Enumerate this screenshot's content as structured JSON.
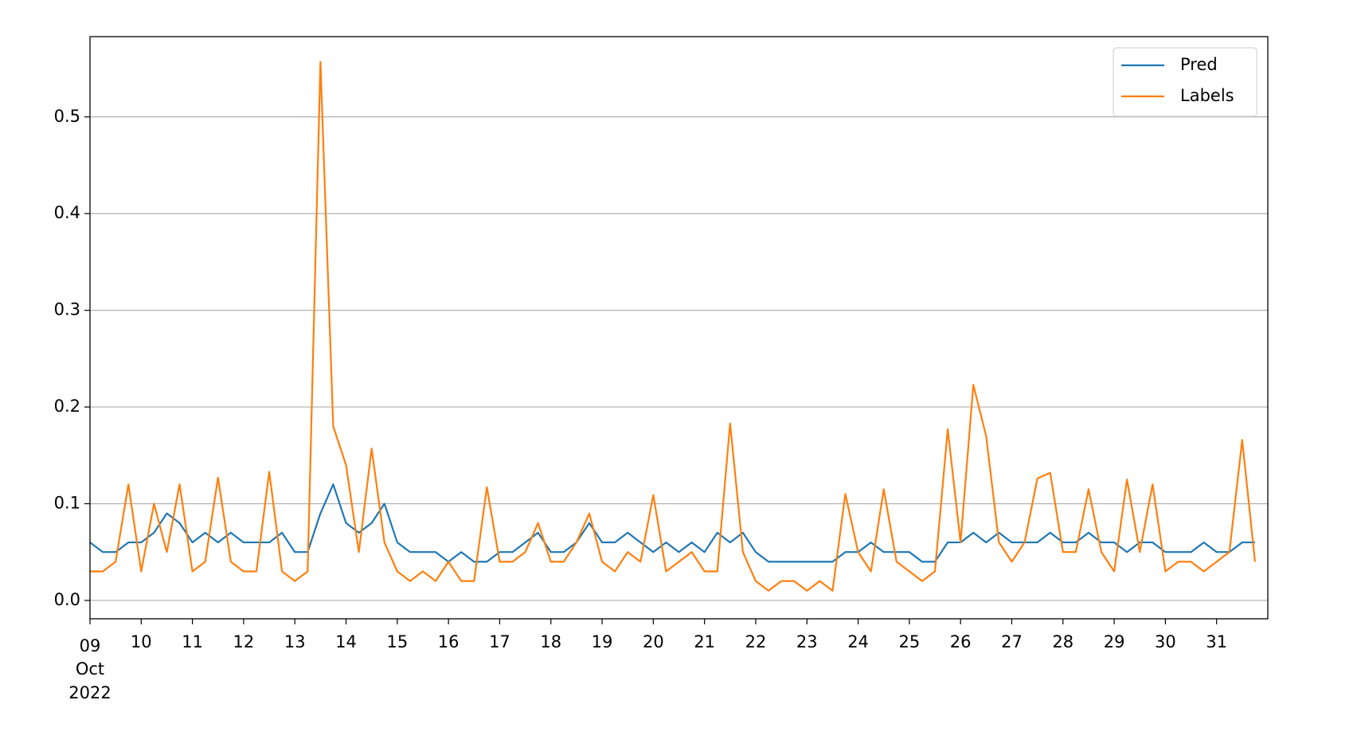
{
  "chart_data": {
    "type": "line",
    "x": [
      9,
      9.25,
      9.5,
      9.75,
      10,
      10.25,
      10.5,
      10.75,
      11,
      11.25,
      11.5,
      11.75,
      12,
      12.25,
      12.5,
      12.75,
      13,
      13.25,
      13.5,
      13.75,
      14,
      14.25,
      14.5,
      14.75,
      15,
      15.25,
      15.5,
      15.75,
      16,
      16.25,
      16.5,
      16.75,
      17,
      17.25,
      17.5,
      17.75,
      18,
      18.25,
      18.5,
      18.75,
      19,
      19.25,
      19.5,
      19.75,
      20,
      20.25,
      20.5,
      20.75,
      21,
      21.25,
      21.5,
      21.75,
      22,
      22.25,
      22.5,
      22.75,
      23,
      23.25,
      23.5,
      23.75,
      24,
      24.25,
      24.5,
      24.75,
      25,
      25.25,
      25.5,
      25.75,
      26,
      26.25,
      26.5,
      26.75,
      27,
      27.25,
      27.5,
      27.75,
      28,
      28.25,
      28.5,
      28.75,
      29,
      29.25,
      29.5,
      29.75,
      30,
      30.25,
      30.5,
      30.75,
      31,
      31.25,
      31.5,
      31.75
    ],
    "series": [
      {
        "name": "Pred",
        "color": "#1f77b4",
        "values": [
          0.06,
          0.05,
          0.05,
          0.06,
          0.06,
          0.07,
          0.09,
          0.08,
          0.06,
          0.07,
          0.06,
          0.07,
          0.06,
          0.06,
          0.06,
          0.07,
          0.05,
          0.05,
          0.09,
          0.12,
          0.08,
          0.07,
          0.08,
          0.1,
          0.06,
          0.05,
          0.05,
          0.05,
          0.04,
          0.05,
          0.04,
          0.04,
          0.05,
          0.05,
          0.06,
          0.07,
          0.05,
          0.05,
          0.06,
          0.08,
          0.06,
          0.06,
          0.07,
          0.06,
          0.05,
          0.06,
          0.05,
          0.06,
          0.05,
          0.07,
          0.06,
          0.07,
          0.05,
          0.04,
          0.04,
          0.04,
          0.04,
          0.04,
          0.04,
          0.05,
          0.05,
          0.06,
          0.05,
          0.05,
          0.05,
          0.04,
          0.04,
          0.06,
          0.06,
          0.07,
          0.06,
          0.07,
          0.06,
          0.06,
          0.06,
          0.07,
          0.06,
          0.06,
          0.07,
          0.06,
          0.06,
          0.05,
          0.06,
          0.06,
          0.05,
          0.05,
          0.05,
          0.06,
          0.05,
          0.05,
          0.06,
          0.06
        ]
      },
      {
        "name": "Labels",
        "color": "#ff7f0e",
        "values": [
          0.03,
          0.03,
          0.04,
          0.12,
          0.03,
          0.1,
          0.05,
          0.12,
          0.03,
          0.04,
          0.127,
          0.04,
          0.03,
          0.03,
          0.133,
          0.03,
          0.02,
          0.03,
          0.557,
          0.18,
          0.14,
          0.05,
          0.157,
          0.06,
          0.03,
          0.02,
          0.03,
          0.02,
          0.04,
          0.02,
          0.02,
          0.117,
          0.04,
          0.04,
          0.05,
          0.08,
          0.04,
          0.04,
          0.06,
          0.09,
          0.04,
          0.03,
          0.05,
          0.04,
          0.109,
          0.03,
          0.04,
          0.05,
          0.03,
          0.03,
          0.183,
          0.05,
          0.02,
          0.01,
          0.02,
          0.02,
          0.01,
          0.02,
          0.01,
          0.11,
          0.05,
          0.03,
          0.115,
          0.04,
          0.03,
          0.02,
          0.03,
          0.177,
          0.06,
          0.223,
          0.17,
          0.06,
          0.04,
          0.06,
          0.126,
          0.132,
          0.05,
          0.05,
          0.115,
          0.05,
          0.03,
          0.125,
          0.05,
          0.12,
          0.03,
          0.04,
          0.04,
          0.03,
          0.04,
          0.05,
          0.166,
          0.04
        ]
      }
    ],
    "xlim": [
      9,
      32
    ],
    "xticks": [
      {
        "value": 9,
        "label": "09"
      },
      10,
      11,
      12,
      13,
      14,
      15,
      16,
      17,
      18,
      19,
      20,
      21,
      22,
      23,
      24,
      25,
      26,
      27,
      28,
      29,
      30,
      31
    ],
    "x_month_label": "Oct",
    "x_year_label": "2022",
    "ylim": [
      -0.019,
      0.583
    ],
    "yticks": [
      {
        "value": 0,
        "label": "0.0"
      },
      0.1,
      0.2,
      0.3,
      0.4,
      0.5
    ],
    "grid": "y",
    "legend": "upper right"
  }
}
